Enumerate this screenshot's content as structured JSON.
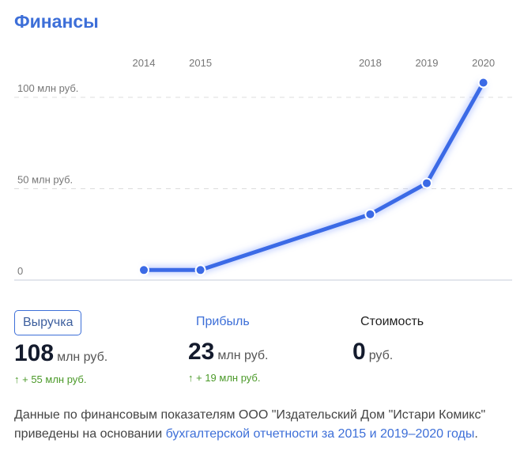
{
  "header": {
    "title": "Финансы"
  },
  "chart_data": {
    "type": "line",
    "categories": [
      "2014",
      "2015",
      "2018",
      "2019",
      "2020"
    ],
    "x": [
      2014,
      2015,
      2018,
      2019,
      2020
    ],
    "values": [
      5.5,
      5.5,
      36,
      53,
      108
    ],
    "unit": "млн руб.",
    "yticks": [
      {
        "value": 0,
        "label": "0"
      },
      {
        "value": 50,
        "label": "50 млн руб."
      },
      {
        "value": 100,
        "label": "100 млн руб."
      }
    ],
    "ylim": [
      0,
      110
    ],
    "grid": true,
    "color": "#3b6ae6"
  },
  "metrics": [
    {
      "label": "Выручка",
      "value": "108",
      "unit": "млн руб.",
      "delta": "↑ + 55 млн руб.",
      "active": true
    },
    {
      "label": "Прибыль",
      "value": "23",
      "unit": "млн руб.",
      "delta": "↑ + 19 млн руб."
    },
    {
      "label": "Стоимость",
      "value": "0",
      "unit": "руб."
    }
  ],
  "note": {
    "text": "Данные по финансовым показателям ООО \"Издательский Дом \"Истари Комикс\" приведены на основании ",
    "link": "бухгалтерской отчетности за 2015 и 2019–2020 годы",
    "end": "."
  }
}
